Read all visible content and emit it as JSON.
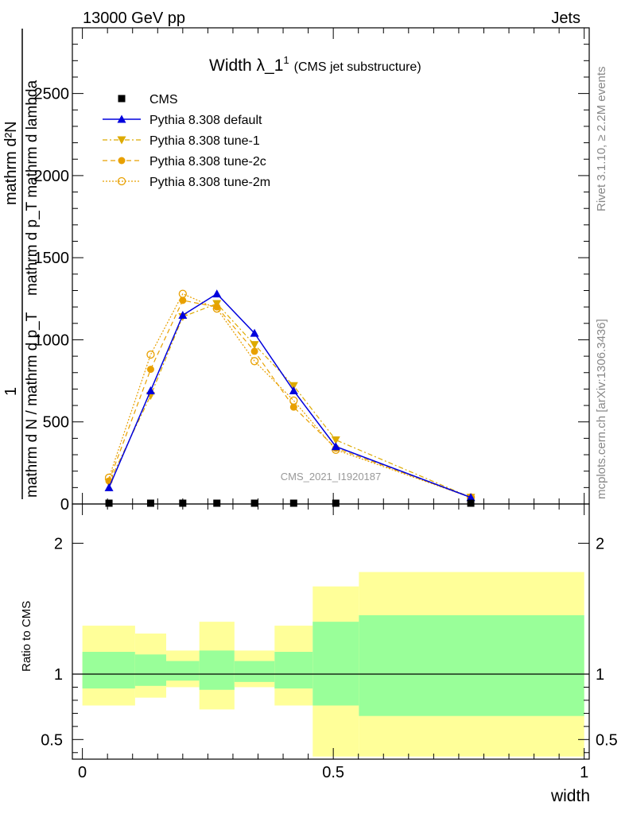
{
  "header": {
    "left": "13000 GeV pp",
    "right": "Jets"
  },
  "side_labels": {
    "rivet": "Rivet 3.1.10, ≥ 2.2M events",
    "mcplots": "mcplots.cern.ch [arXiv:1306.3436]"
  },
  "watermark": "CMS_2021_I1920187",
  "chart_data": [
    {
      "type": "line",
      "title_main": "Width λ_1",
      "title_sup": "1",
      "title_sub": "(CMS jet substructure)",
      "ylabel": {
        "numerator": "1",
        "denominator": "mathrm d N / mathrm d p_T",
        "right_numerator": "mathrm d²N",
        "right_denominator": "mathrm d p_T mathrm d lambda"
      },
      "xlim": [
        -0.02,
        1.01
      ],
      "ylim": [
        0,
        2900
      ],
      "yticks": [
        0,
        500,
        1000,
        1500,
        2000,
        2500
      ],
      "ytick_labels": [
        "0",
        "500",
        "1000",
        "1500",
        "2000",
        "2500"
      ],
      "legend_position": "top-left",
      "series": [
        {
          "name": "CMS",
          "color": "#000000",
          "marker": "square",
          "x": [
            0.053,
            0.136,
            0.2,
            0.268,
            0.343,
            0.421,
            0.505,
            0.774
          ],
          "y": [
            0,
            0,
            0,
            0,
            0,
            0,
            0,
            0
          ]
        },
        {
          "name": "Pythia 8.308 default",
          "color": "#0000dd",
          "marker": "triangle-up",
          "x": [
            0.053,
            0.136,
            0.2,
            0.268,
            0.343,
            0.421,
            0.505,
            0.774
          ],
          "y": [
            100,
            690,
            1150,
            1280,
            1040,
            690,
            350,
            40
          ]
        },
        {
          "name": "Pythia 8.308 tune-1",
          "color": "#ddaa00",
          "marker": "triangle-down",
          "x": [
            0.053,
            0.136,
            0.2,
            0.268,
            0.343,
            0.421,
            0.505,
            0.774
          ],
          "y": [
            130,
            660,
            1140,
            1220,
            970,
            720,
            390,
            40
          ]
        },
        {
          "name": "Pythia 8.308 tune-2c",
          "color": "#e8a000",
          "marker": "circle",
          "x": [
            0.053,
            0.136,
            0.2,
            0.268,
            0.343,
            0.421,
            0.505,
            0.774
          ],
          "y": [
            140,
            820,
            1240,
            1200,
            930,
            590,
            340,
            40
          ]
        },
        {
          "name": "Pythia 8.308 tune-2m",
          "color": "#e8a000",
          "marker": "open-circle",
          "x": [
            0.053,
            0.136,
            0.2,
            0.268,
            0.343,
            0.421,
            0.505,
            0.774
          ],
          "y": [
            160,
            910,
            1280,
            1190,
            870,
            630,
            330,
            40
          ]
        }
      ]
    },
    {
      "type": "area",
      "ylabel": "Ratio to CMS",
      "xlabel": "width",
      "xlim": [
        -0.02,
        1.01
      ],
      "ylim": [
        0.35,
        2.3
      ],
      "yticks": [
        0.5,
        1,
        2
      ],
      "ytick_labels": [
        "0.5",
        "1",
        "2"
      ],
      "xticks": [
        0,
        0.5,
        1
      ],
      "xtick_labels": [
        "0",
        "0.5",
        "1"
      ],
      "bands": {
        "bin_edges": [
          0,
          0.105,
          0.167,
          0.233,
          0.303,
          0.383,
          0.459,
          0.551,
          1.0
        ],
        "green_color": "#99ff99",
        "yellow_color": "#ffff99",
        "green_low": [
          0.89,
          0.91,
          0.95,
          0.88,
          0.94,
          0.89,
          0.76,
          0.68
        ],
        "green_high": [
          1.17,
          1.15,
          1.1,
          1.18,
          1.1,
          1.17,
          1.4,
          1.45
        ],
        "yellow_low": [
          0.76,
          0.82,
          0.9,
          0.73,
          0.9,
          0.76,
          0.37,
          0.37
        ],
        "yellow_high": [
          1.37,
          1.31,
          1.18,
          1.4,
          1.18,
          1.37,
          1.67,
          1.78
        ]
      },
      "reference_line": 1
    }
  ]
}
